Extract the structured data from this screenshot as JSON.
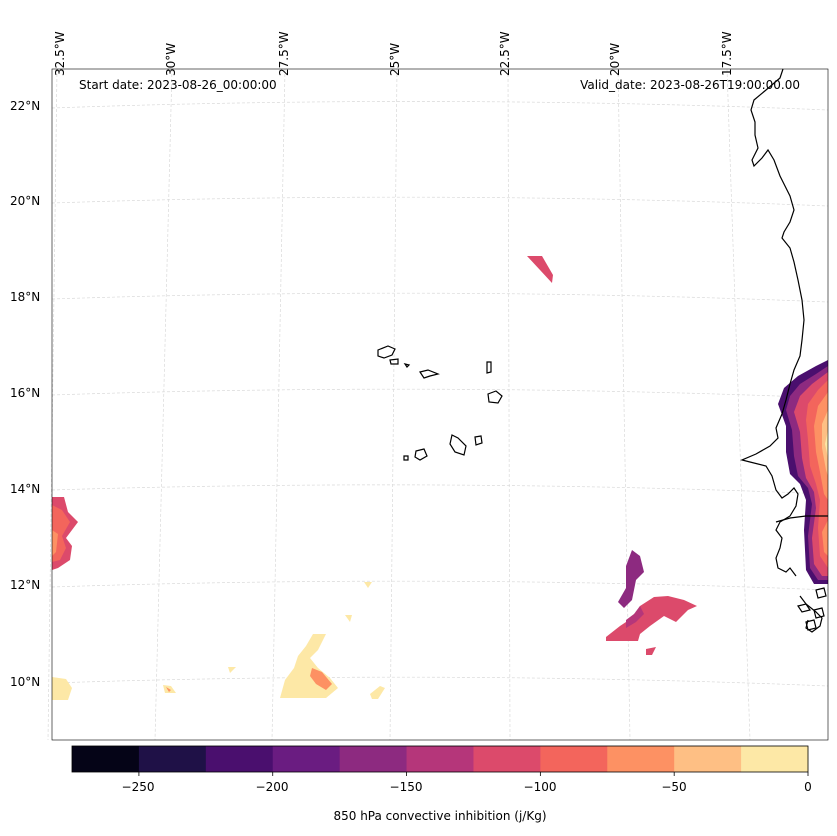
{
  "header": {
    "start_date": "Start date: 2023-08-26_00:00:00",
    "valid_date": "Valid_date: 2023-08-26T19:00:00.00"
  },
  "axes": {
    "longitude_labels": [
      "32.5°W",
      "30°W",
      "27.5°W",
      "25°W",
      "22.5°W",
      "20°W",
      "17.5°W"
    ],
    "latitude_labels": [
      "22°N",
      "20°N",
      "18°N",
      "16°N",
      "14°N",
      "12°N",
      "10°N"
    ]
  },
  "colorbar": {
    "title": "850 hPa convective inhibition (j/Kg)",
    "tick_labels": [
      "−250",
      "−200",
      "−150",
      "−100",
      "−50",
      "0"
    ],
    "levels": [
      -275,
      -250,
      -225,
      -200,
      -175,
      -150,
      -125,
      -100,
      -75,
      -50,
      -25,
      0
    ],
    "colors": [
      "#050417",
      "#1f1147",
      "#4a0f6e",
      "#6a1c81",
      "#8d2a80",
      "#b5367a",
      "#dc4a6b",
      "#f3655c",
      "#fd9163",
      "#febf84",
      "#fde8a6"
    ]
  }
}
